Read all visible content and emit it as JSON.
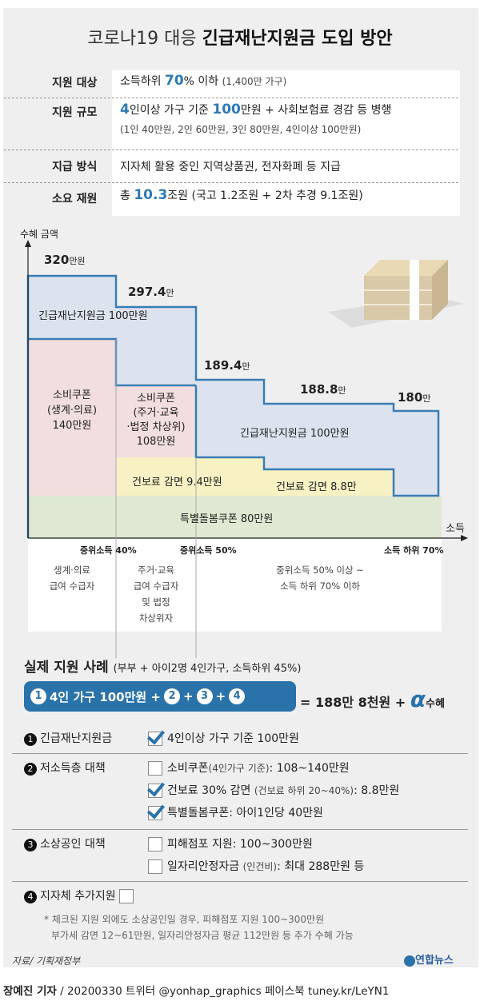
{
  "title": {
    "light": "코로나19 대응 ",
    "bold": "긴급재난지원금 도입 방안"
  },
  "info": [
    {
      "label": "지원 대상",
      "pre": "소득하위 ",
      "hl": "70",
      "post": "% 이하 ",
      "note": "(1,400만 가구)"
    },
    {
      "label": "지원 규모",
      "hl1": "4",
      "mid": "인이상 가구 기준 ",
      "hl2": "100",
      "post": "만원 + 사회보험료 경감 등 병행",
      "note": "(1인 40만원, 2인 60만원, 3인 80만원, 4인이상 100만원)"
    },
    {
      "label": "지급 방식",
      "text": "지자체 활용 중인 지역상품권, 전자화폐 등 지급"
    },
    {
      "label": "소요 재원",
      "pre": "총 ",
      "hl": "10.3",
      "post": "조원 (국고 1.2조원 + 2차 추경 9.1조원)"
    }
  ],
  "chart": {
    "y_axis_label": "수혜 금액",
    "x_axis_label": "소득",
    "totals": [
      {
        "num": "320",
        "unit": "만원"
      },
      {
        "num": "297.4",
        "unit": "만"
      },
      {
        "num": "189.4",
        "unit": "만"
      },
      {
        "num": "188.8",
        "unit": "만"
      },
      {
        "num": "180",
        "unit": "만"
      }
    ],
    "regions": {
      "disaster1": "긴급재난지원금 100만원",
      "disaster2": "긴급재난지원금 100만원",
      "coupon1": [
        "소비쿠폰",
        "(생계·의료)",
        "140만원"
      ],
      "coupon2": [
        "소비쿠폰",
        "(주거·교육",
        "·법정 차상위)",
        "108만원"
      ],
      "health1": "건보료 감면 9.4만원",
      "health2": "건보료 감면 8.8만",
      "care": "특별돌봄쿠폰 80만원"
    },
    "ticks": [
      "중위소득 40%",
      "중위소득 50%",
      "소득 하위 70%"
    ],
    "groups": [
      [
        "생계·의료",
        "급여 수급자"
      ],
      [
        "주거·교육",
        "급여 수급자",
        "및 법정",
        "차상위자"
      ],
      [
        "중위소득 50% 이상 ~",
        "소득 하위 70% 이하"
      ]
    ],
    "colors": {
      "outline": "#3a7db5",
      "disaster": "#dce3ee",
      "coupon": "#f2dede",
      "health": "#f7f1c4",
      "care": "#dfe8d2"
    }
  },
  "example": {
    "title": "실제 지원 사례",
    "subtitle": "(부부 + 아이2명 4인가구, 소득하위 45%)",
    "formula": {
      "c1": "1",
      "t1": "4인 가구 100만원 +",
      "c2": "2",
      "p1": "+",
      "c3": "3",
      "p2": "+",
      "c4": "4"
    },
    "result": "= 188만 8천원 + ",
    "alpha": "α",
    "suffix": "수혜"
  },
  "checklist": [
    {
      "num": "1",
      "label": "긴급재난지원금",
      "items": [
        {
          "checked": true,
          "text": "4인이상 가구 기준 100만원"
        }
      ]
    },
    {
      "num": "2",
      "label": "저소득층 대책",
      "items": [
        {
          "checked": false,
          "text": "소비쿠폰",
          "note": "(4인가구 기준)",
          "value": ": 108~140만원"
        },
        {
          "checked": true,
          "text": "건보료 30% 감면",
          "note": "(건보료 하위 20~40%)",
          "value": ": 8.8만원"
        },
        {
          "checked": true,
          "text": "특별돌봄쿠폰: 아이1인당 40만원"
        }
      ]
    },
    {
      "num": "3",
      "label": "소상공인 대책",
      "items": [
        {
          "checked": false,
          "text": "피해점포 지원: 100~300만원"
        },
        {
          "checked": false,
          "text": "일자리안정자금",
          "note": "(인건비)",
          "value": ": 최대 288만원 등"
        }
      ]
    },
    {
      "num": "4",
      "label": "지자체 추가지원",
      "items": [
        {
          "checked": false
        }
      ]
    }
  ],
  "footnote": [
    "* 체크된 지원 외에도 소상공인일 경우, 피해점포 지원 100~300만원",
    "부가세 감면 12~61만원, 일자리안정자금 평균 112만원 등 추가 수혜 가능"
  ],
  "source": "자료/ 기획재정부",
  "logo": "연합뉴스",
  "credit": {
    "author": "장예진 기자",
    "rest": " / 20200330 트위터 @yonhap_graphics  페이스북 tuney.kr/LeYN1"
  }
}
